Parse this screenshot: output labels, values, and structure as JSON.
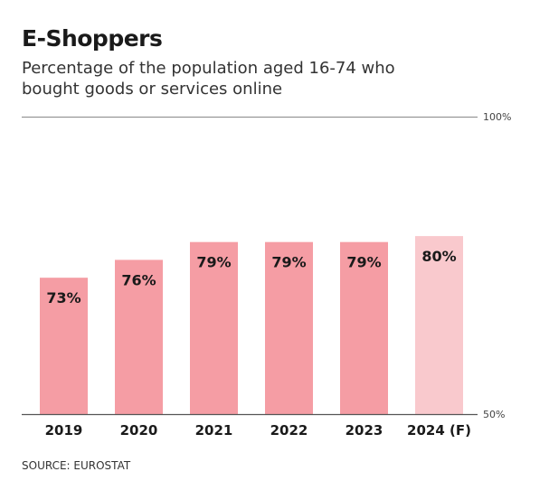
{
  "chart_data": {
    "type": "bar",
    "title": "E-Shoppers",
    "subtitle": "Percentage of the population aged 16-74 who bought goods or services online",
    "categories": [
      "2019",
      "2020",
      "2021",
      "2022",
      "2023",
      "2024 (F)"
    ],
    "values": [
      73,
      76,
      79,
      79,
      79,
      80
    ],
    "value_labels": [
      "73%",
      "76%",
      "79%",
      "79%",
      "79%",
      "80%"
    ],
    "forecast": [
      false,
      false,
      false,
      false,
      false,
      true
    ],
    "ylim": [
      50,
      100
    ],
    "ytick_labels": [
      "100%",
      "50%"
    ],
    "xlabel": "",
    "ylabel": "",
    "grid": false,
    "source": "SOURCE: EUROSTAT",
    "colors": {
      "bar": "#f59da4",
      "forecast_bar": "#f9c9cd",
      "axis": "#888888"
    }
  }
}
